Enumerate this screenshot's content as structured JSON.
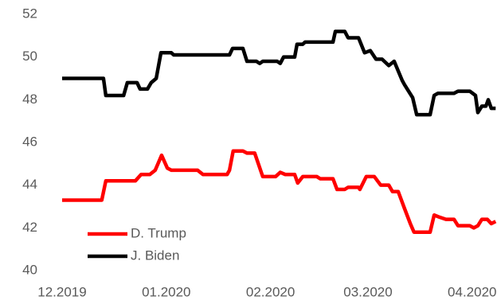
{
  "chart_data": {
    "type": "line",
    "xlim": [
      0,
      129.4
    ],
    "xticks": [
      {
        "value": 0,
        "label": "12.2019"
      },
      {
        "value": 31,
        "label": "01.2020"
      },
      {
        "value": 62,
        "label": "02.2020"
      },
      {
        "value": 91,
        "label": "03.2020"
      },
      {
        "value": 122,
        "label": "04.2020"
      }
    ],
    "ylim": [
      40,
      52
    ],
    "yticks": [
      40,
      42,
      44,
      46,
      48,
      50,
      52
    ],
    "grid": false,
    "legend": "lower left",
    "series": [
      {
        "name": "D. Trump",
        "color": "#ff0000",
        "x": [
          0,
          11.8,
          13,
          21.8,
          23.5,
          26.1,
          27.7,
          29.6,
          31.3,
          32.5,
          40.3,
          41.9,
          49.1,
          49.8,
          50.9,
          53.8,
          55,
          57.3,
          59.7,
          63.5,
          64.9,
          66.4,
          69.2,
          70.1,
          71.6,
          75.8,
          76.8,
          80.6,
          81.8,
          84.1,
          85.1,
          88.2,
          88.6,
          90.5,
          92.9,
          94.8,
          97.2,
          98.3,
          100,
          101.9,
          103.6,
          104.7,
          109.5,
          110.7,
          112.3,
          114.2,
          116.6,
          117.8,
          121.3,
          122.5,
          123.7,
          124.9,
          126.5,
          127.7,
          129
        ],
        "values": [
          43.3,
          43.3,
          44.2,
          44.2,
          44.5,
          44.5,
          44.7,
          45.4,
          44.8,
          44.7,
          44.7,
          44.5,
          44.5,
          44.7,
          45.6,
          45.6,
          45.5,
          45.5,
          44.4,
          44.4,
          44.6,
          44.5,
          44.5,
          44.1,
          44.4,
          44.4,
          44.3,
          44.3,
          43.8,
          43.8,
          43.9,
          43.9,
          43.8,
          44.4,
          44.4,
          44.0,
          44.0,
          43.7,
          43.7,
          42.9,
          42.2,
          41.8,
          41.8,
          42.6,
          42.5,
          42.4,
          42.4,
          42.1,
          42.1,
          42.0,
          42.1,
          42.4,
          42.4,
          42.2,
          42.3
        ]
      },
      {
        "name": "J. Biden",
        "color": "#000000",
        "x": [
          0,
          12.3,
          13,
          18.3,
          19.4,
          22.3,
          23.2,
          25.4,
          26.5,
          28,
          29.4,
          32.5,
          33.2,
          49.8,
          50.7,
          53.8,
          55,
          57.8,
          58.8,
          59.7,
          64,
          64.9,
          65.9,
          69.2,
          69.9,
          71.6,
          72.3,
          80.6,
          81.3,
          84.1,
          85.1,
          88.2,
          90,
          91.7,
          93.4,
          95.2,
          97.2,
          98.8,
          101.2,
          101.9,
          104.3,
          105.5,
          109.5,
          110.7,
          111.8,
          116.6,
          117.8,
          121.3,
          123,
          123.7,
          124.9,
          126.1,
          126.8,
          127.7,
          129
        ],
        "values": [
          49.0,
          49.0,
          48.2,
          48.2,
          48.8,
          48.8,
          48.5,
          48.5,
          48.8,
          49.0,
          50.2,
          50.2,
          50.1,
          50.1,
          50.4,
          50.4,
          49.8,
          49.8,
          49.7,
          49.8,
          49.8,
          49.7,
          50.0,
          50.0,
          50.6,
          50.6,
          50.7,
          50.7,
          51.2,
          51.2,
          50.9,
          50.9,
          50.2,
          50.3,
          49.9,
          49.9,
          49.6,
          49.8,
          48.9,
          48.7,
          48.1,
          47.3,
          47.3,
          48.2,
          48.3,
          48.3,
          48.4,
          48.4,
          48.2,
          47.4,
          47.7,
          47.7,
          48.0,
          47.6,
          47.6
        ]
      }
    ]
  }
}
